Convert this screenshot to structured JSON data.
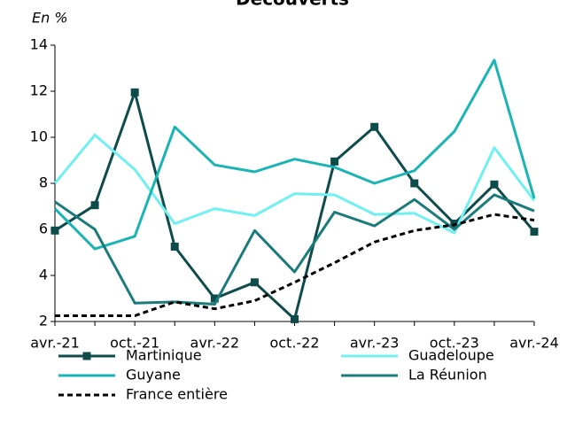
{
  "chart_data": {
    "type": "line",
    "title": "Découverts",
    "y_axis_label": "En %",
    "categories": [
      "avr.-21",
      null,
      "oct.-21",
      null,
      "avr.-22",
      null,
      "oct.-22",
      null,
      "avr.-23",
      null,
      "oct.-23",
      null,
      "avr.-24"
    ],
    "ylim": [
      2,
      14
    ],
    "yticks": [
      2,
      4,
      6,
      8,
      10,
      12,
      14
    ],
    "grid": false,
    "series": [
      {
        "name": "Martinique",
        "color": "#0e4b4b",
        "marker": "square",
        "values": [
          5.95,
          7.05,
          11.95,
          5.25,
          3.0,
          3.7,
          2.1,
          8.95,
          10.45,
          8.0,
          6.25,
          7.95,
          5.9
        ]
      },
      {
        "name": "Guadeloupe",
        "color": "#70f0f0",
        "values": [
          8.0,
          10.1,
          8.6,
          6.25,
          6.9,
          6.6,
          7.55,
          7.5,
          6.65,
          6.7,
          5.85,
          9.55,
          7.25
        ]
      },
      {
        "name": "Guyane",
        "color": "#1ab4b4",
        "values": [
          6.9,
          5.15,
          5.7,
          10.45,
          8.8,
          8.5,
          9.05,
          8.7,
          8.0,
          8.55,
          10.25,
          13.35,
          7.35
        ]
      },
      {
        "name": "La Réunion",
        "color": "#1b7b7b",
        "values": [
          7.2,
          6.0,
          2.8,
          2.85,
          2.75,
          5.95,
          4.15,
          6.75,
          6.15,
          7.3,
          6.0,
          7.5,
          6.8
        ]
      },
      {
        "name": "France entière",
        "color": "#000000",
        "dashed": true,
        "values": [
          2.25,
          2.25,
          2.25,
          2.85,
          2.55,
          2.9,
          3.7,
          4.55,
          5.45,
          5.95,
          6.2,
          6.65,
          6.4
        ]
      }
    ]
  }
}
